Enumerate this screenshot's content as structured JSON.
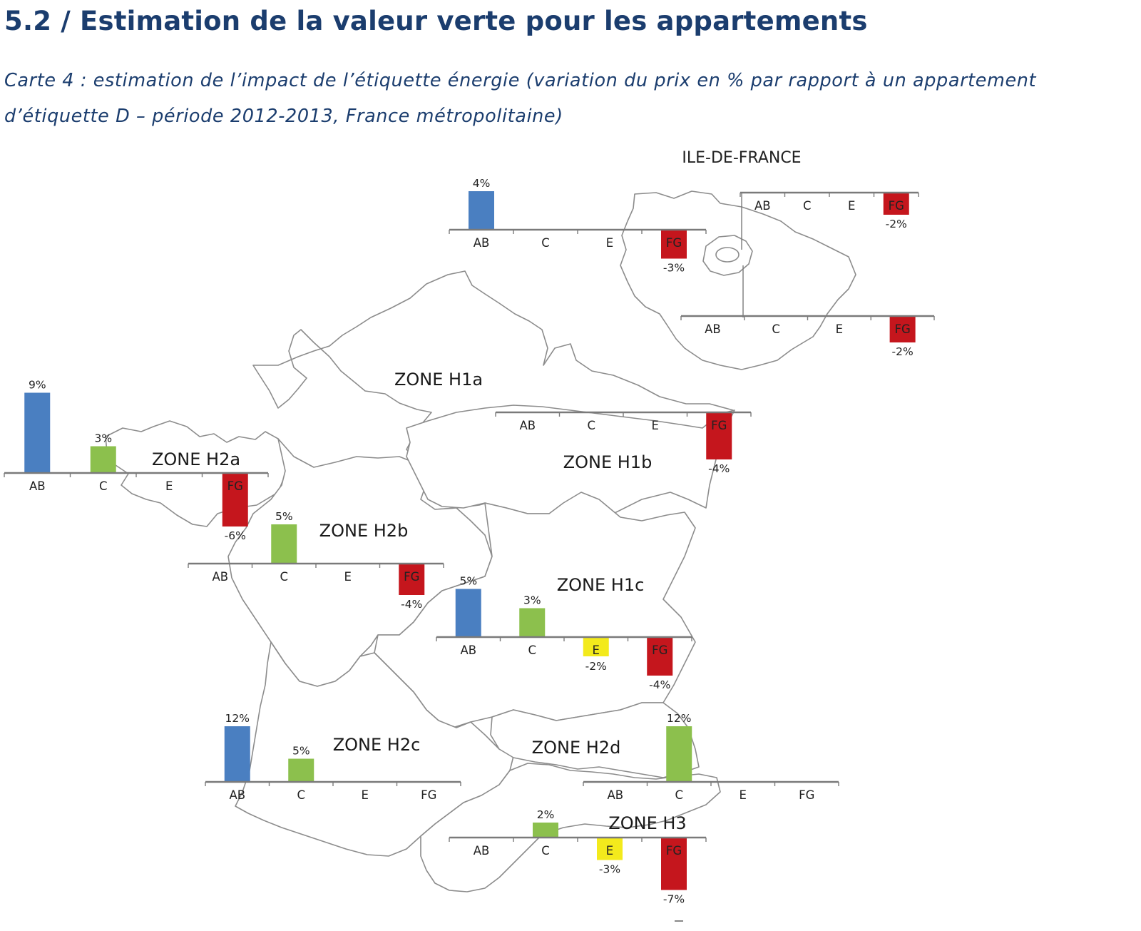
{
  "header": {
    "title": "5.2 / Estimation de la valeur verte pour les appartements",
    "caption": "Carte 4 : estimation de l’impact de l’étiquette énergie (variation du prix en % par rapport à un appartement d’étiquette D – période 2012-2013, France métropolitaine)"
  },
  "map": {
    "inset_title": "ILE-DE-FRANCE",
    "zone_labels": {
      "h1a": "ZONE H1a",
      "h1b": "ZONE H1b",
      "h1c": "ZONE H1c",
      "h2a": "ZONE H2a",
      "h2b": "ZONE H2b",
      "h2c": "ZONE H2c",
      "h2d": "ZONE H2d",
      "h3": "ZONE H3"
    }
  },
  "colors": {
    "AB": "#4a7fc1",
    "C": "#8cc04d",
    "E": "#f3ea1c",
    "FG": "#c5161d",
    "outline": "#8c8c8c",
    "title": "#1b3d6e"
  },
  "chart_data": [
    {
      "type": "bar",
      "zone": "ZONE H1a",
      "categories": [
        "AB",
        "C",
        "E",
        "FG"
      ],
      "values": [
        4,
        0,
        0,
        -3
      ],
      "labels": [
        "4%",
        "",
        "",
        "-3%"
      ]
    },
    {
      "type": "bar",
      "zone": "ILE-DE-FRANCE (1)",
      "categories": [
        "AB",
        "C",
        "E",
        "FG"
      ],
      "values": [
        0,
        0,
        0,
        -2
      ],
      "labels": [
        "",
        "",
        "",
        "-2%"
      ]
    },
    {
      "type": "bar",
      "zone": "ILE-DE-FRANCE (2)",
      "categories": [
        "AB",
        "C",
        "E",
        "FG"
      ],
      "values": [
        0,
        0,
        0,
        -2
      ],
      "labels": [
        "",
        "",
        "",
        "-2%"
      ]
    },
    {
      "type": "bar",
      "zone": "ZONE H1b",
      "categories": [
        "AB",
        "C",
        "E",
        "FG"
      ],
      "values": [
        0,
        0,
        0,
        -4
      ],
      "labels": [
        "",
        "",
        "",
        "-4%"
      ]
    },
    {
      "type": "bar",
      "zone": "ZONE H2a",
      "categories": [
        "AB",
        "C",
        "E",
        "FG"
      ],
      "values": [
        9,
        3,
        0,
        -6
      ],
      "labels": [
        "9%",
        "3%",
        "",
        "-6%"
      ]
    },
    {
      "type": "bar",
      "zone": "ZONE H2b",
      "categories": [
        "AB",
        "C",
        "E",
        "FG"
      ],
      "values": [
        0,
        5,
        0,
        -4
      ],
      "labels": [
        "",
        "5%",
        "",
        "-4%"
      ]
    },
    {
      "type": "bar",
      "zone": "ZONE H1c",
      "categories": [
        "AB",
        "C",
        "E",
        "FG"
      ],
      "values": [
        5,
        3,
        -2,
        -4
      ],
      "labels": [
        "5%",
        "3%",
        "-2%",
        "-4%"
      ]
    },
    {
      "type": "bar",
      "zone": "ZONE H2c",
      "categories": [
        "AB",
        "C",
        "E",
        "FG"
      ],
      "values": [
        12,
        5,
        0,
        0
      ],
      "labels": [
        "12%",
        "5%",
        "",
        ""
      ]
    },
    {
      "type": "bar",
      "zone": "ZONE H2d",
      "categories": [
        "AB",
        "C",
        "E",
        "FG"
      ],
      "values": [
        0,
        12,
        0,
        0
      ],
      "labels": [
        "",
        "12%",
        "",
        ""
      ]
    },
    {
      "type": "bar",
      "zone": "ZONE H3",
      "categories": [
        "AB",
        "C",
        "E",
        "FG"
      ],
      "values": [
        0,
        2,
        -3,
        -7
      ],
      "labels": [
        "",
        "2%",
        "-3%",
        "-7%"
      ]
    }
  ]
}
